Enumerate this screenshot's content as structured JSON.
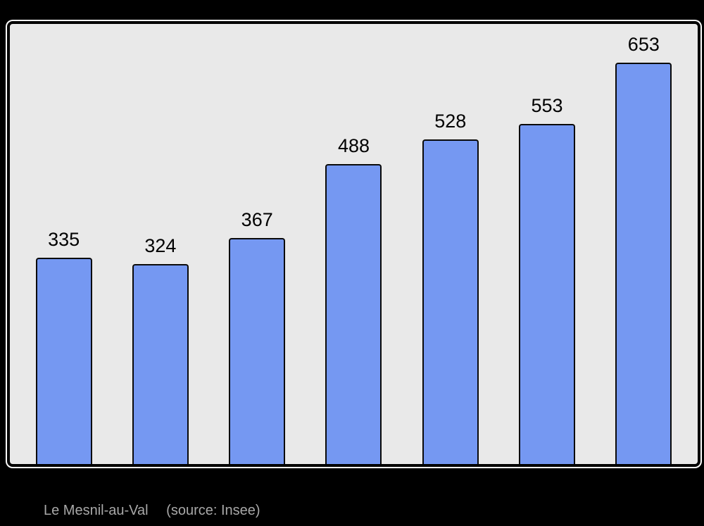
{
  "chart_data": {
    "type": "bar",
    "values": [
      335,
      324,
      367,
      488,
      528,
      553,
      653
    ],
    "data_labels": [
      "335",
      "324",
      "367",
      "488",
      "528",
      "553",
      "653"
    ],
    "title": "",
    "xlabel": "",
    "ylabel": "",
    "ylim": [
      0,
      653
    ],
    "grid": false,
    "legend": null,
    "axis_tick_labels_visible": false,
    "bar_color": "#7598f2",
    "bar_border_color": "#0a0a0a",
    "plot_background": "#e9e9e9",
    "page_background": "#000000",
    "label_color": "#000000",
    "caption_color": "#a8a8a8"
  },
  "caption": {
    "name": "Le Mesnil-au-Val",
    "source": "(source: Insee)"
  }
}
